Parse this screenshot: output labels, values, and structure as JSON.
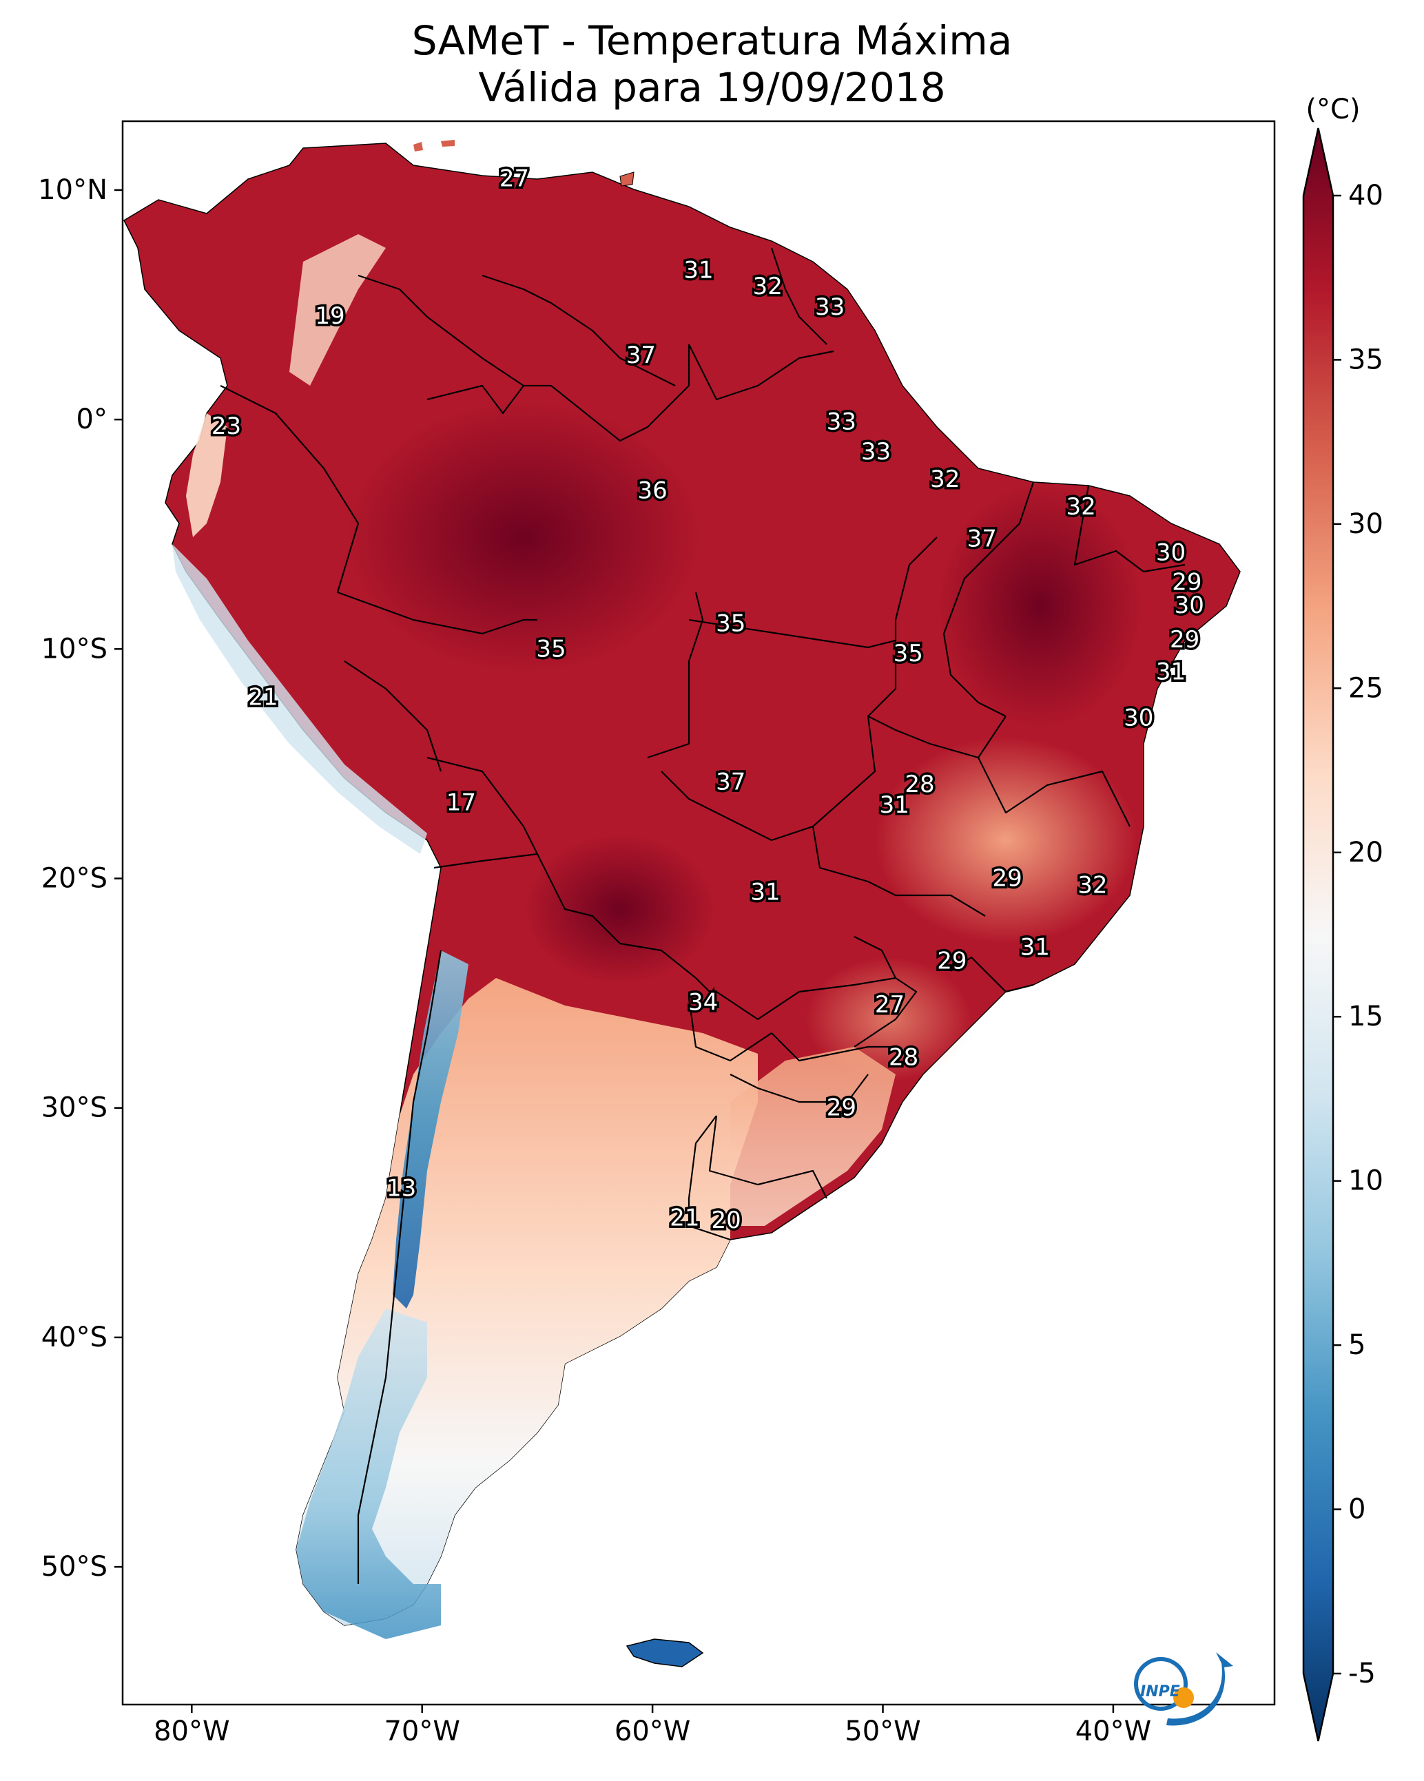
{
  "title": "SAMeT - Temperatura Máxima",
  "subtitle": "Válida para 19/09/2018",
  "colorbar": {
    "unit": "(°C)",
    "range": [
      -5,
      40
    ],
    "ticks": [
      "40",
      "35",
      "30",
      "25",
      "20",
      "15",
      "10",
      "5",
      "0",
      "-5"
    ],
    "colors": [
      "#67001f",
      "#b2182b",
      "#d6604d",
      "#f4a582",
      "#fddbc7",
      "#f7f7f7",
      "#d1e5f0",
      "#92c5de",
      "#4393c3",
      "#2166ac",
      "#053061"
    ],
    "extend": "both"
  },
  "axes": {
    "lon_labels": [
      "80°W",
      "70°W",
      "60°W",
      "50°W",
      "40°W"
    ],
    "lat_labels": [
      "10°N",
      "0°",
      "10°S",
      "20°S",
      "30°S",
      "40°S",
      "50°S"
    ],
    "extent": {
      "lon": [
        -83,
        -33
      ],
      "lat": [
        -56,
        13
      ]
    }
  },
  "temperature_labels": [
    {
      "text": "27",
      "lon": -66.0,
      "lat": 10.5
    },
    {
      "text": "19",
      "lon": -74.0,
      "lat": 4.5
    },
    {
      "text": "31",
      "lon": -58.0,
      "lat": 6.5
    },
    {
      "text": "32",
      "lon": -55.0,
      "lat": 5.8
    },
    {
      "text": "33",
      "lon": -52.3,
      "lat": 4.9
    },
    {
      "text": "37",
      "lon": -60.5,
      "lat": 2.8
    },
    {
      "text": "23",
      "lon": -78.5,
      "lat": -0.3
    },
    {
      "text": "33",
      "lon": -51.8,
      "lat": -0.1
    },
    {
      "text": "33",
      "lon": -50.3,
      "lat": -1.4
    },
    {
      "text": "36",
      "lon": -60.0,
      "lat": -3.1
    },
    {
      "text": "32",
      "lon": -47.3,
      "lat": -2.6
    },
    {
      "text": "32",
      "lon": -41.4,
      "lat": -3.8
    },
    {
      "text": "37",
      "lon": -45.7,
      "lat": -5.2
    },
    {
      "text": "30",
      "lon": -37.5,
      "lat": -5.8
    },
    {
      "text": "29",
      "lon": -36.8,
      "lat": -7.1
    },
    {
      "text": "30",
      "lon": -36.7,
      "lat": -8.1
    },
    {
      "text": "35",
      "lon": -56.6,
      "lat": -8.9
    },
    {
      "text": "35",
      "lon": -64.4,
      "lat": -10.0
    },
    {
      "text": "35",
      "lon": -48.9,
      "lat": -10.2
    },
    {
      "text": "29",
      "lon": -36.9,
      "lat": -9.6
    },
    {
      "text": "31",
      "lon": -37.5,
      "lat": -11.0
    },
    {
      "text": "21",
      "lon": -76.9,
      "lat": -12.1
    },
    {
      "text": "30",
      "lon": -38.9,
      "lat": -13.0
    },
    {
      "text": "37",
      "lon": -56.6,
      "lat": -15.8
    },
    {
      "text": "28",
      "lon": -48.4,
      "lat": -15.9
    },
    {
      "text": "31",
      "lon": -49.5,
      "lat": -16.8
    },
    {
      "text": "17",
      "lon": -68.3,
      "lat": -16.7
    },
    {
      "text": "29",
      "lon": -44.6,
      "lat": -20.0
    },
    {
      "text": "32",
      "lon": -40.9,
      "lat": -20.3
    },
    {
      "text": "31",
      "lon": -55.1,
      "lat": -20.6
    },
    {
      "text": "31",
      "lon": -43.4,
      "lat": -23.0
    },
    {
      "text": "29",
      "lon": -47.0,
      "lat": -23.6
    },
    {
      "text": "34",
      "lon": -57.8,
      "lat": -25.4
    },
    {
      "text": "27",
      "lon": -49.7,
      "lat": -25.5
    },
    {
      "text": "28",
      "lon": -49.1,
      "lat": -27.8
    },
    {
      "text": "29",
      "lon": -51.8,
      "lat": -30.0
    },
    {
      "text": "13",
      "lon": -70.9,
      "lat": -33.5
    },
    {
      "text": "21",
      "lon": -58.6,
      "lat": -34.8
    },
    {
      "text": "20",
      "lon": -56.8,
      "lat": -34.9
    }
  ],
  "logo": {
    "text": "INPE"
  }
}
